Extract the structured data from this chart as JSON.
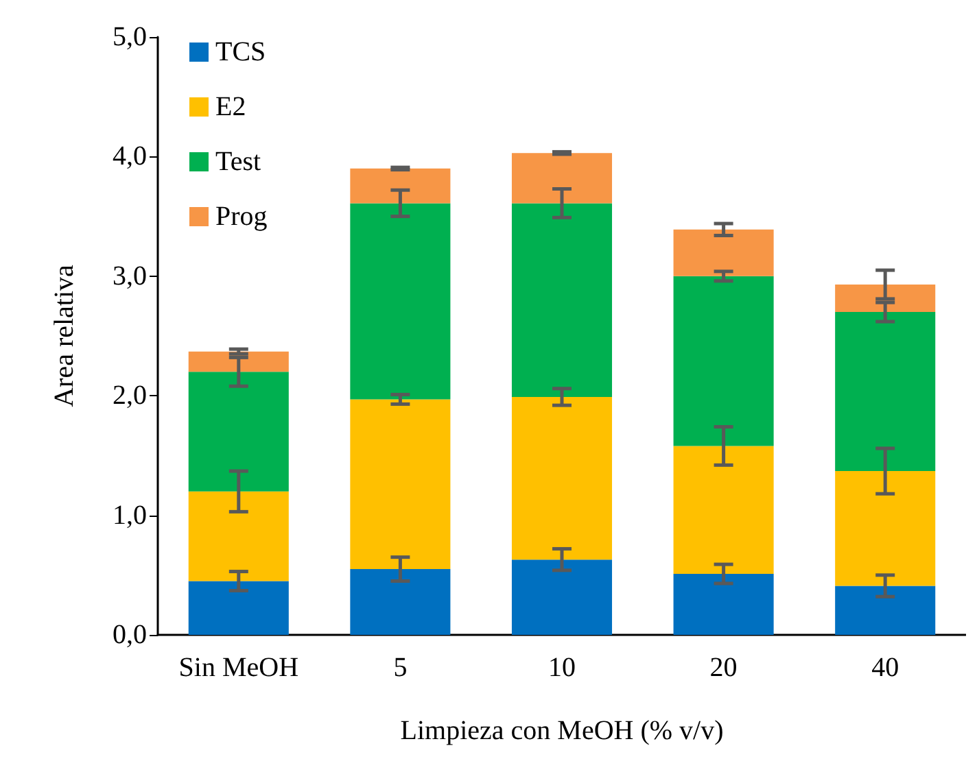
{
  "chart_data": {
    "type": "bar",
    "stacked": true,
    "xlabel": "Limpieza con MeOH (% v/v)",
    "ylabel": "Area relativa",
    "categories": [
      "Sin MeOH",
      "5",
      "10",
      "20",
      "40"
    ],
    "series": [
      {
        "name": "TCS",
        "color": "#0070c0",
        "values": [
          0.45,
          0.55,
          0.63,
          0.51,
          0.41
        ],
        "errors": [
          0.08,
          0.1,
          0.09,
          0.08,
          0.09
        ]
      },
      {
        "name": "E2",
        "color": "#ffc000",
        "values": [
          0.75,
          1.42,
          1.36,
          1.07,
          0.96
        ],
        "errors": [
          0.17,
          0.04,
          0.07,
          0.16,
          0.19
        ]
      },
      {
        "name": "Test",
        "color": "#00b050",
        "values": [
          1.0,
          1.64,
          1.62,
          1.42,
          1.33
        ],
        "errors": [
          0.12,
          0.11,
          0.12,
          0.04,
          0.08
        ]
      },
      {
        "name": "Prog",
        "color": "#f79646",
        "values": [
          0.17,
          0.29,
          0.42,
          0.39,
          0.23
        ],
        "errors": [
          0.02,
          0.01,
          0.01,
          0.05,
          0.12
        ]
      }
    ],
    "ylim": [
      0,
      5
    ],
    "yticks": [
      {
        "value": 0,
        "label": "0,0"
      },
      {
        "value": 1,
        "label": "1,0"
      },
      {
        "value": 2,
        "label": "2,0"
      },
      {
        "value": 3,
        "label": "3,0"
      },
      {
        "value": 4,
        "label": "4,0"
      },
      {
        "value": 5,
        "label": "5,0"
      }
    ],
    "grid": false,
    "legend": "top left"
  }
}
